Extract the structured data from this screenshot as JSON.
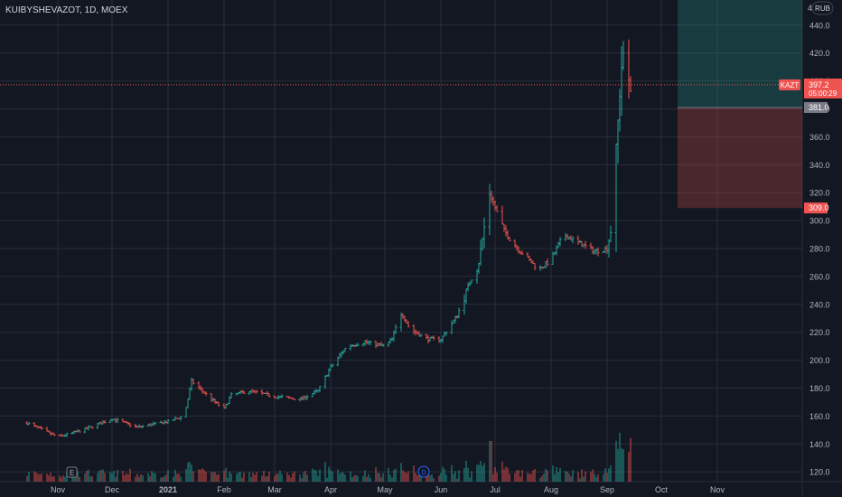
{
  "header": {
    "title": "KUIBYSHEVAZOT, 1D, MOEX"
  },
  "currency": "RUB",
  "markers": {
    "earnings": "E",
    "dividend": "D"
  },
  "last_price": {
    "ticker": "KAZT",
    "value": "397.2",
    "countdown": "05:00:29"
  },
  "position": {
    "entry": "381.0",
    "stop": "309.0",
    "target_note": "extends above 440"
  },
  "colors": {
    "background": "#131722",
    "up": "#26a69a",
    "down": "#ef5350",
    "grid": "#2a2e39",
    "text": "#b2b5be"
  },
  "chart_data": {
    "type": "bar",
    "xlabel": "",
    "ylabel": "",
    "ylim": [
      113,
      458
    ],
    "yticks": [
      120,
      140,
      160,
      180,
      200,
      220,
      240,
      260,
      280,
      300,
      320,
      340,
      360,
      380,
      400,
      420,
      440
    ],
    "x_ticks": [
      "Nov",
      "Dec",
      "2021",
      "Feb",
      "Mar",
      "Apr",
      "May",
      "Jun",
      "Jul",
      "Aug",
      "Sep",
      "Oct",
      "Nov"
    ],
    "price_anchors": [
      [
        "Oct 15",
        155
      ],
      [
        "Nov 1",
        145
      ],
      [
        "Nov 15",
        150
      ],
      [
        "Dec 1",
        158
      ],
      [
        "Dec 15",
        152
      ],
      [
        "Jan 1",
        156
      ],
      [
        "Jan 10",
        160
      ],
      [
        "Jan 14",
        185
      ],
      [
        "Jan 25",
        172
      ],
      [
        "Feb 1",
        165
      ],
      [
        "Feb 5",
        175
      ],
      [
        "Feb 15",
        178
      ],
      [
        "Mar 1",
        174
      ],
      [
        "Mar 15",
        172
      ],
      [
        "Mar 25",
        178
      ],
      [
        "Apr 1",
        195
      ],
      [
        "Apr 10",
        210
      ],
      [
        "Apr 20",
        213
      ],
      [
        "May 1",
        210
      ],
      [
        "May 5",
        215
      ],
      [
        "May 10",
        235
      ],
      [
        "May 15",
        222
      ],
      [
        "May 25",
        215
      ],
      [
        "Jun 1",
        215
      ],
      [
        "Jun 10",
        232
      ],
      [
        "Jun 15",
        250
      ],
      [
        "Jun 22",
        270
      ],
      [
        "Jun 28",
        320
      ],
      [
        "Jul 5",
        295
      ],
      [
        "Jul 10",
        285
      ],
      [
        "Jul 15",
        278
      ],
      [
        "Jul 25",
        265
      ],
      [
        "Aug 1",
        272
      ],
      [
        "Aug 8",
        290
      ],
      [
        "Aug 15",
        285
      ],
      [
        "Aug 25",
        278
      ],
      [
        "Sep 1",
        280
      ],
      [
        "Sep 4",
        300
      ],
      [
        "Sep 7",
        370
      ],
      [
        "Sep 10",
        420
      ],
      [
        "Sep 14",
        397.2
      ]
    ]
  }
}
